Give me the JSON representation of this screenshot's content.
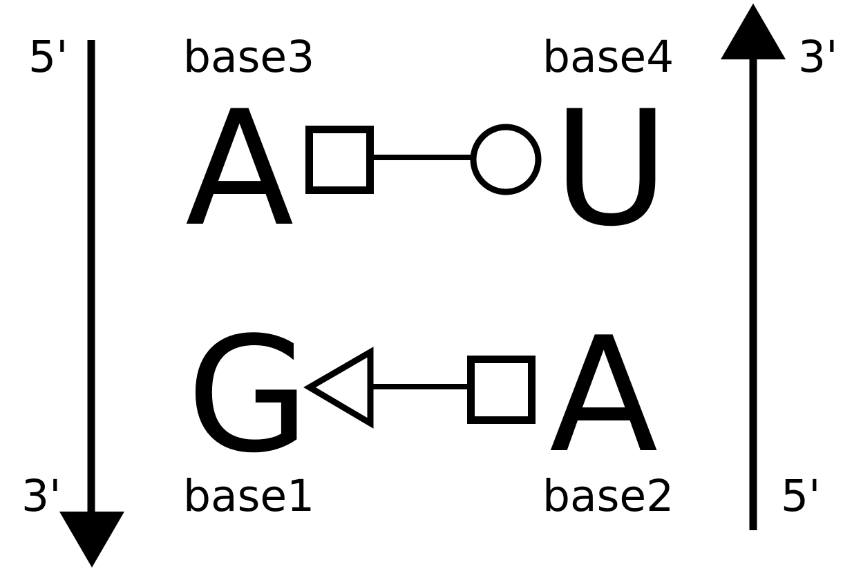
{
  "colors": {
    "ink": "#000000",
    "background": "#ffffff"
  },
  "left_strand": {
    "top_end": "5'",
    "bottom_end": "3'",
    "direction": "down"
  },
  "right_strand": {
    "top_end": "3'",
    "bottom_end": "5'",
    "direction": "up"
  },
  "top_pair": {
    "left_label": "base3",
    "right_label": "base4",
    "left_base": "A",
    "right_base": "U",
    "left_edge_symbol": "square",
    "right_edge_symbol": "circle"
  },
  "bottom_pair": {
    "left_label": "base1",
    "right_label": "base2",
    "left_base": "G",
    "right_base": "A",
    "left_edge_symbol": "triangle",
    "right_edge_symbol": "square"
  }
}
